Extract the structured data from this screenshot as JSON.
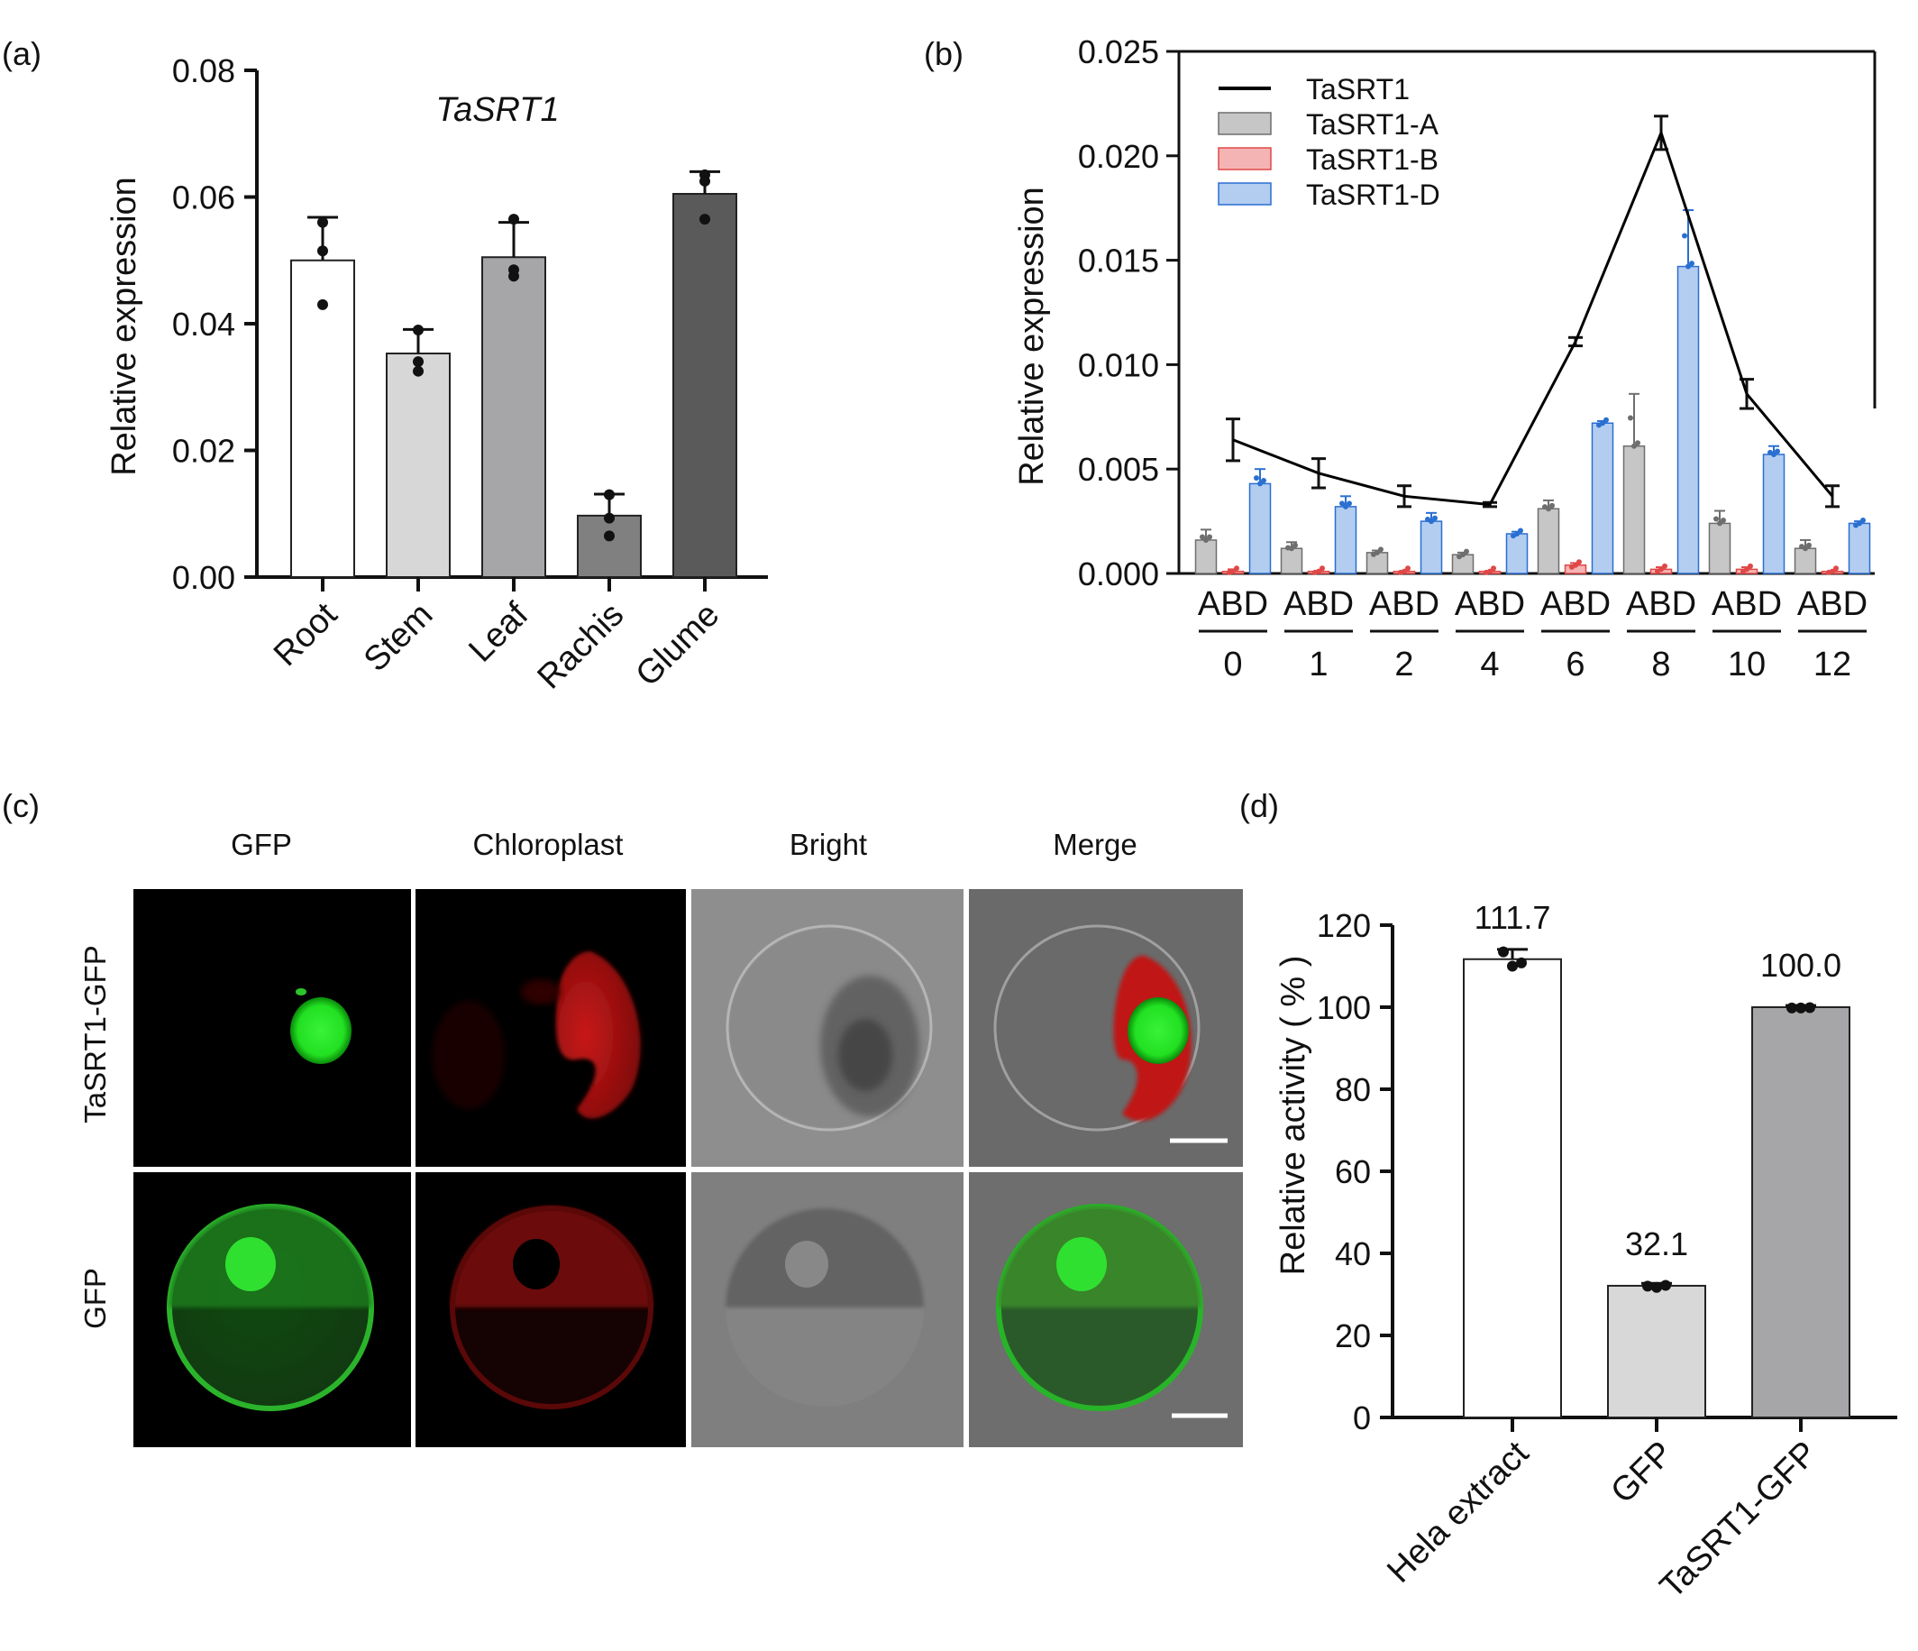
{
  "panel_labels": {
    "a": "(a)",
    "b": "(b)",
    "c": "(c)",
    "d": "(d)"
  },
  "chart_data": [
    {
      "id": "a",
      "type": "bar",
      "title": "TaSRT1",
      "ylabel": "Relative expression",
      "xlabel": "",
      "ylim": [
        0,
        0.08
      ],
      "yticks": [
        0.0,
        0.02,
        0.04,
        0.06,
        0.08
      ],
      "ytick_labels": [
        "0.00",
        "0.02",
        "0.04",
        "0.06",
        "0.08"
      ],
      "categories": [
        "Root",
        "Stem",
        "Leaf",
        "Rachis",
        "Glume"
      ],
      "values": [
        0.05,
        0.0353,
        0.0505,
        0.0097,
        0.0605
      ],
      "errors": [
        0.0068,
        0.0038,
        0.0055,
        0.0034,
        0.0035
      ],
      "points": [
        [
          0.056,
          0.0515,
          0.043
        ],
        [
          0.039,
          0.034,
          0.0325
        ],
        [
          0.0565,
          0.0485,
          0.0475
        ],
        [
          0.013,
          0.0093,
          0.0065
        ],
        [
          0.0635,
          0.0625,
          0.0565
        ]
      ],
      "colors": [
        "#ffffff",
        "#d7d7d7",
        "#a6a6a8",
        "#808080",
        "#5a5a5a"
      ]
    },
    {
      "id": "b",
      "type": "bar",
      "ylabel": "Relative expression",
      "xlabel": "",
      "ylim": [
        0,
        0.025
      ],
      "yticks": [
        0.0,
        0.005,
        0.01,
        0.015,
        0.02,
        0.025
      ],
      "ytick_labels": [
        "0.000",
        "0.005",
        "0.010",
        "0.015",
        "0.020",
        "0.025"
      ],
      "categories": [
        "0",
        "1",
        "2",
        "4",
        "6",
        "8",
        "10",
        "12"
      ],
      "group_sublabel": "ABD",
      "series": [
        {
          "name": "TaSRT1-A",
          "color": "#c6c6c6",
          "dot": "#6e6e6e",
          "values": [
            0.0016,
            0.0012,
            0.001,
            0.0009,
            0.0031,
            0.0061,
            0.0024,
            0.0012
          ],
          "errors": [
            0.0005,
            0.0003,
            0.0001,
            0.0001,
            0.0004,
            0.0025,
            0.0006,
            0.0004
          ]
        },
        {
          "name": "TaSRT1-B",
          "color": "#f5b4b4",
          "dot": "#e04848",
          "values": [
            0.0001,
            0.0001,
            0.0001,
            0.0001,
            0.0004,
            0.0002,
            0.0002,
            0.0001
          ],
          "errors": [
            0.0001,
            0.0,
            0.0,
            0.0,
            0.0001,
            0.0001,
            0.0001,
            0.0
          ],
          "line_style": "dashed"
        },
        {
          "name": "TaSRT1-D",
          "color": "#b3cdf0",
          "dot": "#2a6fd1",
          "values": [
            0.0043,
            0.0032,
            0.0025,
            0.0019,
            0.0072,
            0.0147,
            0.0057,
            0.0024
          ],
          "errors": [
            0.0007,
            0.0005,
            0.0004,
            0.0001,
            0.0001,
            0.0027,
            0.0004,
            0.0001
          ]
        }
      ],
      "line_series": {
        "name": "TaSRT1",
        "color": "#000000",
        "values": [
          0.0064,
          0.0048,
          0.0037,
          0.0033,
          0.0111,
          0.0211,
          0.0086,
          0.0037
        ],
        "errors": [
          0.001,
          0.0007,
          0.0005,
          0.0001,
          0.0002,
          0.0008,
          0.0007,
          0.0005
        ]
      },
      "legend": "top-left"
    },
    {
      "id": "d",
      "type": "bar",
      "ylabel": "Relative activity ( % )",
      "xlabel": "",
      "ylim": [
        0,
        120
      ],
      "yticks": [
        0,
        20,
        40,
        60,
        80,
        100,
        120
      ],
      "ytick_labels": [
        "0",
        "20",
        "40",
        "60",
        "80",
        "100",
        "120"
      ],
      "categories": [
        "Hela extract",
        "GFP",
        "TaSRT1-GFP"
      ],
      "values": [
        111.7,
        32.1,
        100.0
      ],
      "value_labels": [
        "111.7",
        "32.1",
        "100.0"
      ],
      "errors": [
        2.4,
        0.6,
        0.4
      ],
      "points": [
        [
          113.5,
          110.0,
          110.8
        ],
        [
          32.0,
          31.7,
          32.2
        ],
        [
          99.8,
          99.8,
          99.9
        ]
      ],
      "colors": [
        "#ffffff",
        "#d8d8d8",
        "#a6a6a8"
      ]
    }
  ],
  "microscopy": {
    "column_titles": [
      "GFP",
      "Chloroplast",
      "Bright",
      "Merge"
    ],
    "row_titles": [
      "TaSRT1-GFP",
      "GFP"
    ]
  }
}
